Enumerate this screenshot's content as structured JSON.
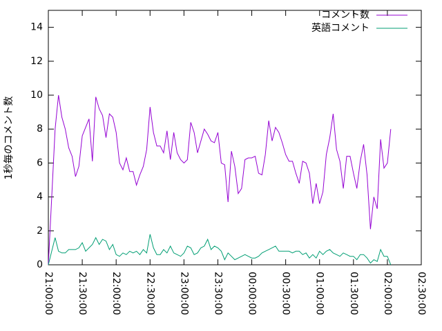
{
  "chart_data": {
    "type": "line",
    "ylabel": "1秒毎のコメント数",
    "legend": "top right",
    "grid": false,
    "x": [
      "21:00:00",
      "21:03:00",
      "21:06:00",
      "21:09:00",
      "21:12:00",
      "21:15:00",
      "21:18:00",
      "21:21:00",
      "21:24:00",
      "21:27:00",
      "21:30:00",
      "21:33:00",
      "21:36:00",
      "21:39:00",
      "21:42:00",
      "21:45:00",
      "21:48:00",
      "21:51:00",
      "21:54:00",
      "21:57:00",
      "22:00:00",
      "22:03:00",
      "22:06:00",
      "22:09:00",
      "22:12:00",
      "22:15:00",
      "22:18:00",
      "22:21:00",
      "22:24:00",
      "22:27:00",
      "22:30:00",
      "22:33:00",
      "22:36:00",
      "22:39:00",
      "22:42:00",
      "22:45:00",
      "22:48:00",
      "22:51:00",
      "22:54:00",
      "22:57:00",
      "23:00:00",
      "23:03:00",
      "23:06:00",
      "23:09:00",
      "23:12:00",
      "23:15:00",
      "23:18:00",
      "23:21:00",
      "23:24:00",
      "23:27:00",
      "23:30:00",
      "23:33:00",
      "23:36:00",
      "23:39:00",
      "23:42:00",
      "23:45:00",
      "23:48:00",
      "23:51:00",
      "23:54:00",
      "23:57:00",
      "00:00:00",
      "00:03:00",
      "00:06:00",
      "00:09:00",
      "00:12:00",
      "00:15:00",
      "00:18:00",
      "00:21:00",
      "00:24:00",
      "00:27:00",
      "00:30:00",
      "00:33:00",
      "00:36:00",
      "00:39:00",
      "00:42:00",
      "00:45:00",
      "00:48:00",
      "00:51:00",
      "00:54:00",
      "00:57:00",
      "01:00:00",
      "01:03:00",
      "01:06:00",
      "01:09:00",
      "01:12:00",
      "01:15:00",
      "01:18:00",
      "01:21:00",
      "01:24:00",
      "01:27:00",
      "01:30:00",
      "01:33:00",
      "01:36:00",
      "01:39:00",
      "01:42:00",
      "01:45:00",
      "01:48:00",
      "01:51:00",
      "01:54:00",
      "01:57:00",
      "02:00:00",
      "02:03:00"
    ],
    "series": [
      {
        "name": "コメント数",
        "color": "#9400d3",
        "values": [
          0,
          4,
          8,
          10,
          8.7,
          8,
          6.9,
          6.4,
          5.2,
          5.8,
          7.6,
          8.1,
          8.6,
          6.1,
          9.9,
          9.2,
          8.8,
          7.5,
          8.9,
          8.7,
          7.8,
          6,
          5.6,
          6.3,
          5.5,
          5.5,
          4.7,
          5.3,
          5.8,
          6.8,
          9.3,
          7.8,
          7,
          7,
          6.6,
          7.9,
          6.2,
          7.8,
          6.6,
          6.2,
          6,
          6.2,
          8.4,
          7.8,
          6.6,
          7.3,
          8,
          7.7,
          7.3,
          7.2,
          7.8,
          6,
          5.9,
          3.7,
          6.7,
          5.8,
          4.2,
          4.5,
          6.2,
          6.3,
          6.3,
          6.4,
          5.4,
          5.3,
          6.5,
          8.5,
          7.3,
          8.1,
          7.8,
          7.2,
          6.5,
          6.1,
          6.1,
          5.4,
          4.8,
          6.1,
          6,
          5.4,
          3.6,
          4.8,
          3.6,
          4.3,
          6.5,
          7.5,
          8.9,
          6.8,
          6.1,
          4.5,
          6.4,
          6.4,
          5.4,
          4.5,
          6.1,
          7.1,
          5.3,
          2.1,
          4,
          3.3,
          7.4,
          5.7,
          6,
          8
        ]
      },
      {
        "name": "英語コメント",
        "color": "#009e73",
        "values": [
          0,
          0.8,
          1.6,
          0.8,
          0.7,
          0.7,
          0.9,
          0.9,
          0.9,
          1,
          1.3,
          0.8,
          1,
          1.2,
          1.6,
          1.2,
          1.5,
          1.4,
          0.9,
          1.2,
          0.6,
          0.5,
          0.7,
          0.6,
          0.8,
          0.7,
          0.8,
          0.6,
          0.9,
          0.7,
          1.8,
          1,
          0.6,
          0.6,
          0.9,
          0.7,
          1.1,
          0.7,
          0.6,
          0.5,
          0.7,
          1.1,
          1,
          0.6,
          0.7,
          1,
          1.1,
          1.5,
          0.9,
          1.1,
          1,
          0.8,
          0.3,
          0.7,
          0.5,
          0.3,
          0.4,
          0.5,
          0.6,
          0.5,
          0.4,
          0.4,
          0.5,
          0.7,
          0.8,
          0.9,
          1,
          1.1,
          0.8,
          0.8,
          0.8,
          0.8,
          0.7,
          0.8,
          0.8,
          0.6,
          0.7,
          0.4,
          0.6,
          0.4,
          0.8,
          0.6,
          0.8,
          0.9,
          0.7,
          0.6,
          0.5,
          0.7,
          0.6,
          0.5,
          0.5,
          0.3,
          0.6,
          0.6,
          0.4,
          0.1,
          0.3,
          0.2,
          0.9,
          0.5,
          0.5,
          0
        ]
      }
    ],
    "xlim": [
      "21:00:00",
      "02:30:00"
    ],
    "xticks": [
      "21:00:00",
      "21:30:00",
      "22:00:00",
      "22:30:00",
      "23:00:00",
      "23:30:00",
      "00:00:00",
      "00:30:00",
      "01:00:00",
      "01:30:00",
      "02:00:00",
      "02:30:00"
    ],
    "ylim": [
      0,
      15
    ],
    "yticks": [
      0,
      2,
      4,
      6,
      8,
      10,
      12,
      14
    ]
  }
}
